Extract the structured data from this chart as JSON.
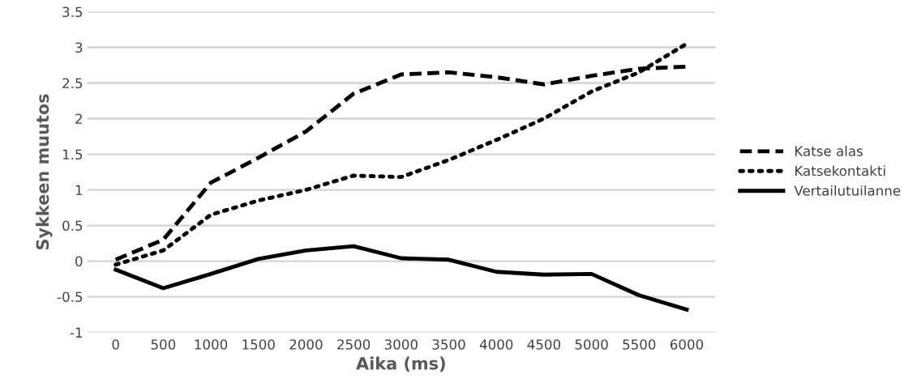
{
  "chart_data": {
    "type": "line",
    "xlabel": "Aika (ms)",
    "ylabel": "Sykkeen muutos",
    "categories": [
      "0",
      "500",
      "1000",
      "1500",
      "2000",
      "2500",
      "3000",
      "3500",
      "4000",
      "4500",
      "5000",
      "5500",
      "6000"
    ],
    "series": [
      {
        "name": "Katse alas",
        "color": "#000000",
        "line_style": "dashed",
        "values": [
          0.02,
          0.3,
          1.1,
          1.45,
          1.82,
          2.35,
          2.62,
          2.65,
          2.58,
          2.48,
          2.6,
          2.7,
          2.73
        ]
      },
      {
        "name": "Katsekontakti",
        "color": "#000000",
        "line_style": "dotted",
        "values": [
          -0.05,
          0.15,
          0.65,
          0.85,
          1.0,
          1.2,
          1.18,
          1.42,
          1.7,
          2.0,
          2.38,
          2.65,
          3.05
        ]
      },
      {
        "name": "Vertailutuilanne",
        "color": "#000000",
        "line_style": "solid",
        "values": [
          -0.12,
          -0.38,
          -0.18,
          0.03,
          0.15,
          0.21,
          0.04,
          0.02,
          -0.15,
          -0.19,
          -0.18,
          -0.48,
          -0.68
        ]
      }
    ],
    "ylim": [
      -1,
      3.5
    ],
    "yticks": [
      -1,
      -0.5,
      0,
      0.5,
      1,
      1.5,
      2,
      2.5,
      3,
      3.5
    ],
    "grid": "y",
    "legend": "right"
  }
}
